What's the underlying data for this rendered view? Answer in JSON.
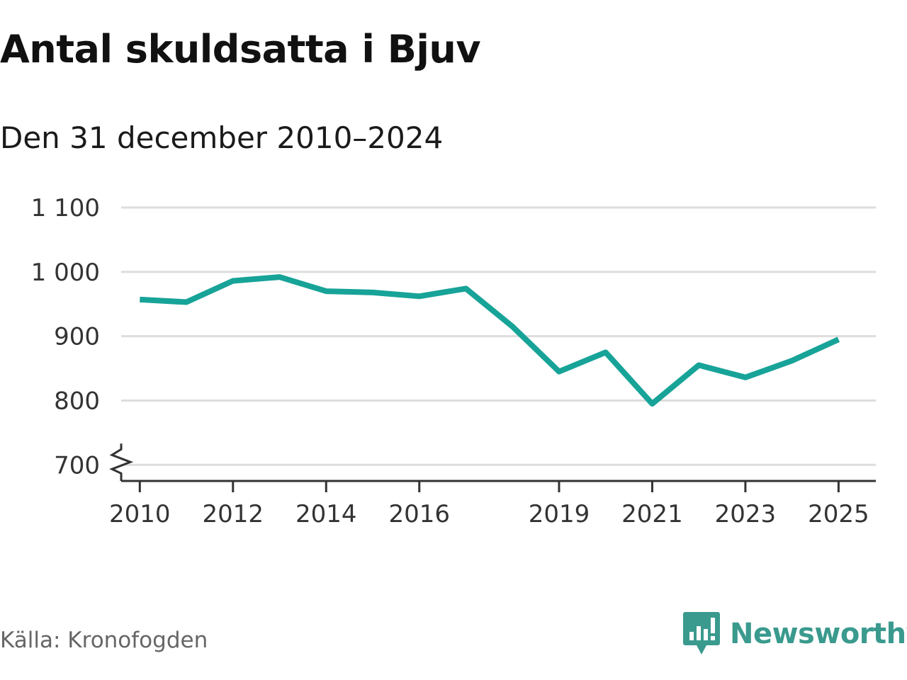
{
  "title": "Antal skuldsatta i Bjuv",
  "subtitle": "Den 31 december 2010–2024",
  "source": "Källa: Kronofogden",
  "brand": {
    "name": "Newsworthy",
    "icon": "newsworthy-logo-icon",
    "color": "#3a9a8e"
  },
  "colors": {
    "line": "#17a398",
    "grid": "#dddddd",
    "axis": "#333333"
  },
  "chart_data": {
    "type": "line",
    "x": [
      2010,
      2011,
      2012,
      2013,
      2014,
      2015,
      2016,
      2017,
      2018,
      2019,
      2020,
      2021,
      2022,
      2023,
      2024,
      2025
    ],
    "series": [
      {
        "values": [
          957,
          953,
          986,
          992,
          970,
          968,
          962,
          974,
          915,
          845,
          875,
          795,
          855,
          836,
          862,
          895
        ]
      }
    ],
    "x_ticks": [
      2010,
      2012,
      2014,
      2016,
      2019,
      2021,
      2023,
      2025
    ],
    "x_tick_labels": [
      "2010",
      "2012",
      "2014",
      "2016",
      "2019",
      "2021",
      "2023",
      "2025"
    ],
    "y_ticks": [
      700,
      800,
      900,
      1000,
      1100
    ],
    "y_tick_labels": [
      "700",
      "800",
      "900",
      "1 000",
      "1 100"
    ],
    "xlim": [
      2009.6,
      2025.8
    ],
    "ylim": [
      675,
      1100
    ],
    "y_axis_break": true,
    "grid": true
  }
}
